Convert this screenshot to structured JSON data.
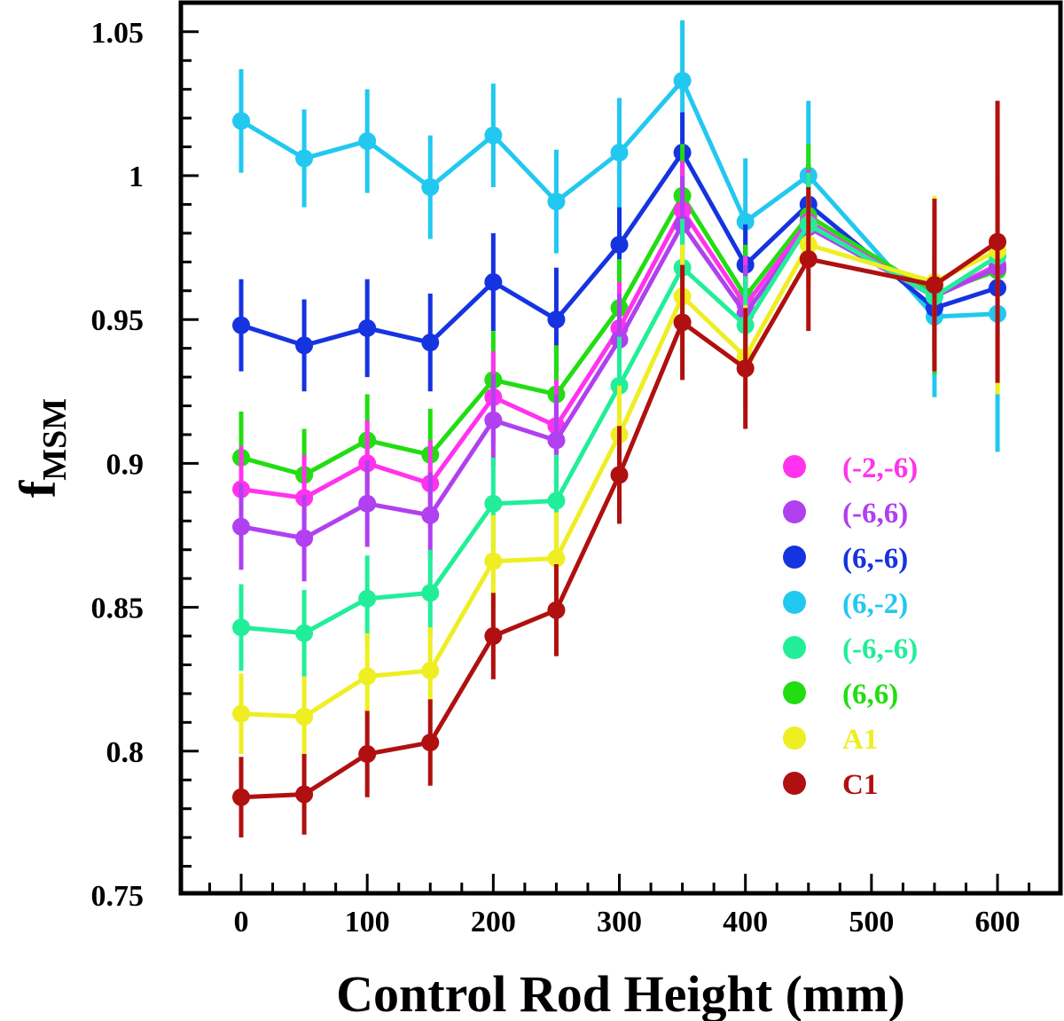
{
  "chart_data": {
    "type": "line",
    "title": "",
    "xlabel": "Control Rod Height (mm)",
    "ylabel": "f",
    "ylabel_subscript": "MSM",
    "xlim": [
      -50,
      640
    ],
    "ylim": [
      0.75,
      1.06
    ],
    "xticks": [
      0,
      100,
      200,
      300,
      400,
      500,
      600
    ],
    "yticks": [
      0.75,
      0.8,
      0.85,
      0.9,
      0.95,
      1.0,
      1.05
    ],
    "ytick_labels": [
      "0.75",
      "0.8",
      "0.85",
      "0.9",
      "0.95",
      "1",
      "1.05"
    ],
    "grid": false,
    "legend_position": "center-right",
    "series": [
      {
        "name": "(6,-2)",
        "color": "#22c8f0",
        "x": [
          0,
          50,
          100,
          150,
          200,
          250,
          300,
          350,
          400,
          450,
          550,
          600
        ],
        "values": [
          1.019,
          1.006,
          1.012,
          0.996,
          1.014,
          0.991,
          1.008,
          1.033,
          0.984,
          1.0,
          0.951,
          0.952
        ],
        "errors": [
          0.018,
          0.017,
          0.018,
          0.018,
          0.018,
          0.018,
          0.019,
          0.021,
          0.022,
          0.026,
          0.028,
          0.048
        ]
      },
      {
        "name": "(6,-6)",
        "color": "#1633e0",
        "x": [
          0,
          50,
          100,
          150,
          200,
          250,
          300,
          350,
          400,
          450,
          550,
          600
        ],
        "values": [
          0.948,
          0.941,
          0.947,
          0.942,
          0.963,
          0.95,
          0.976,
          1.008,
          0.969,
          0.99,
          0.954,
          0.961
        ],
        "errors": [
          0.016,
          0.016,
          0.017,
          0.017,
          0.017,
          0.018,
          0.013,
          0.014,
          0.014,
          0.014,
          0.02,
          0.034
        ]
      },
      {
        "name": "(6,6)",
        "color": "#22dd11",
        "x": [
          0,
          50,
          100,
          150,
          200,
          250,
          300,
          350,
          400,
          450,
          550,
          600
        ],
        "values": [
          0.902,
          0.896,
          0.908,
          0.903,
          0.929,
          0.924,
          0.954,
          0.993,
          0.958,
          0.986,
          0.959,
          0.967
        ],
        "errors": [
          0.016,
          0.016,
          0.016,
          0.016,
          0.017,
          0.017,
          0.017,
          0.018,
          0.018,
          0.025,
          0.028,
          0.04
        ]
      },
      {
        "name": "(-2,-6)",
        "color": "#ff33ee",
        "x": [
          0,
          50,
          100,
          150,
          200,
          250,
          300,
          350,
          400,
          450,
          550,
          600
        ],
        "values": [
          0.891,
          0.888,
          0.9,
          0.893,
          0.923,
          0.913,
          0.947,
          0.988,
          0.955,
          0.984,
          0.958,
          0.969
        ],
        "errors": [
          0.015,
          0.015,
          0.015,
          0.015,
          0.016,
          0.016,
          0.016,
          0.017,
          0.017,
          0.018,
          0.02,
          0.024
        ]
      },
      {
        "name": "(-6,6)",
        "color": "#b040f0",
        "x": [
          0,
          50,
          100,
          150,
          200,
          250,
          300,
          350,
          400,
          450,
          550,
          600
        ],
        "values": [
          0.878,
          0.874,
          0.886,
          0.882,
          0.915,
          0.908,
          0.943,
          0.983,
          0.952,
          0.982,
          0.958,
          0.968
        ],
        "errors": [
          0.015,
          0.015,
          0.015,
          0.015,
          0.016,
          0.016,
          0.016,
          0.017,
          0.017,
          0.018,
          0.02,
          0.024
        ]
      },
      {
        "name": "(-6,-6)",
        "color": "#22ee99",
        "x": [
          0,
          50,
          100,
          150,
          200,
          250,
          300,
          350,
          400,
          450,
          550,
          600
        ],
        "values": [
          0.843,
          0.841,
          0.853,
          0.855,
          0.886,
          0.887,
          0.927,
          0.968,
          0.948,
          0.983,
          0.958,
          0.972
        ],
        "errors": [
          0.015,
          0.015,
          0.015,
          0.015,
          0.016,
          0.016,
          0.017,
          0.017,
          0.017,
          0.018,
          0.02,
          0.024
        ]
      },
      {
        "name": "A1",
        "color": "#eeee22",
        "x": [
          0,
          50,
          100,
          150,
          200,
          250,
          300,
          350,
          400,
          450,
          550,
          600
        ],
        "values": [
          0.813,
          0.812,
          0.826,
          0.828,
          0.866,
          0.867,
          0.91,
          0.958,
          0.937,
          0.976,
          0.963,
          0.974
        ],
        "errors": [
          0.014,
          0.014,
          0.015,
          0.015,
          0.016,
          0.016,
          0.017,
          0.018,
          0.018,
          0.02,
          0.03,
          0.05
        ]
      },
      {
        "name": "C1",
        "color": "#b01010",
        "x": [
          0,
          50,
          100,
          150,
          200,
          250,
          300,
          350,
          400,
          450,
          550,
          600
        ],
        "values": [
          0.784,
          0.785,
          0.799,
          0.803,
          0.84,
          0.849,
          0.896,
          0.949,
          0.933,
          0.971,
          0.962,
          0.977
        ],
        "errors": [
          0.014,
          0.014,
          0.015,
          0.015,
          0.015,
          0.016,
          0.017,
          0.02,
          0.021,
          0.025,
          0.03,
          0.049
        ]
      }
    ],
    "legend_order": [
      "(-2,-6)",
      "(-6,6)",
      "(6,-6)",
      "(6,-2)",
      "(-6,-6)",
      "(6,6)",
      "A1",
      "C1"
    ]
  }
}
